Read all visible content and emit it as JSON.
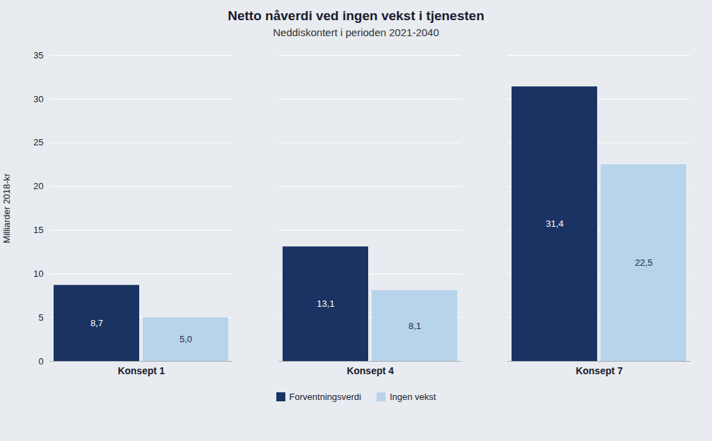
{
  "chart_data": {
    "type": "bar",
    "title": "Netto nåverdi ved ingen vekst i tjenesten",
    "subtitle": "Neddiskontert i perioden 2021-2040",
    "categories": [
      "Konsept 1",
      "Konsept 4",
      "Konsept 7"
    ],
    "series": [
      {
        "name": "Forventningsverdi",
        "color": "#1a3362",
        "values": [
          8.7,
          13.1,
          31.4
        ],
        "value_labels": [
          "8,7",
          "13,1",
          "31,4"
        ]
      },
      {
        "name": "Ingen vekst",
        "color": "#b8d4ea",
        "values": [
          5.0,
          8.1,
          22.5
        ],
        "value_labels": [
          "5,0",
          "8,1",
          "22,5"
        ]
      }
    ],
    "ylabel": "Milliarder 2018-kr",
    "ylim": [
      0,
      35
    ],
    "yticks": [
      0,
      5,
      10,
      15,
      20,
      25,
      30,
      35
    ],
    "grid": true,
    "legend": "bottom",
    "data_labels": true
  }
}
